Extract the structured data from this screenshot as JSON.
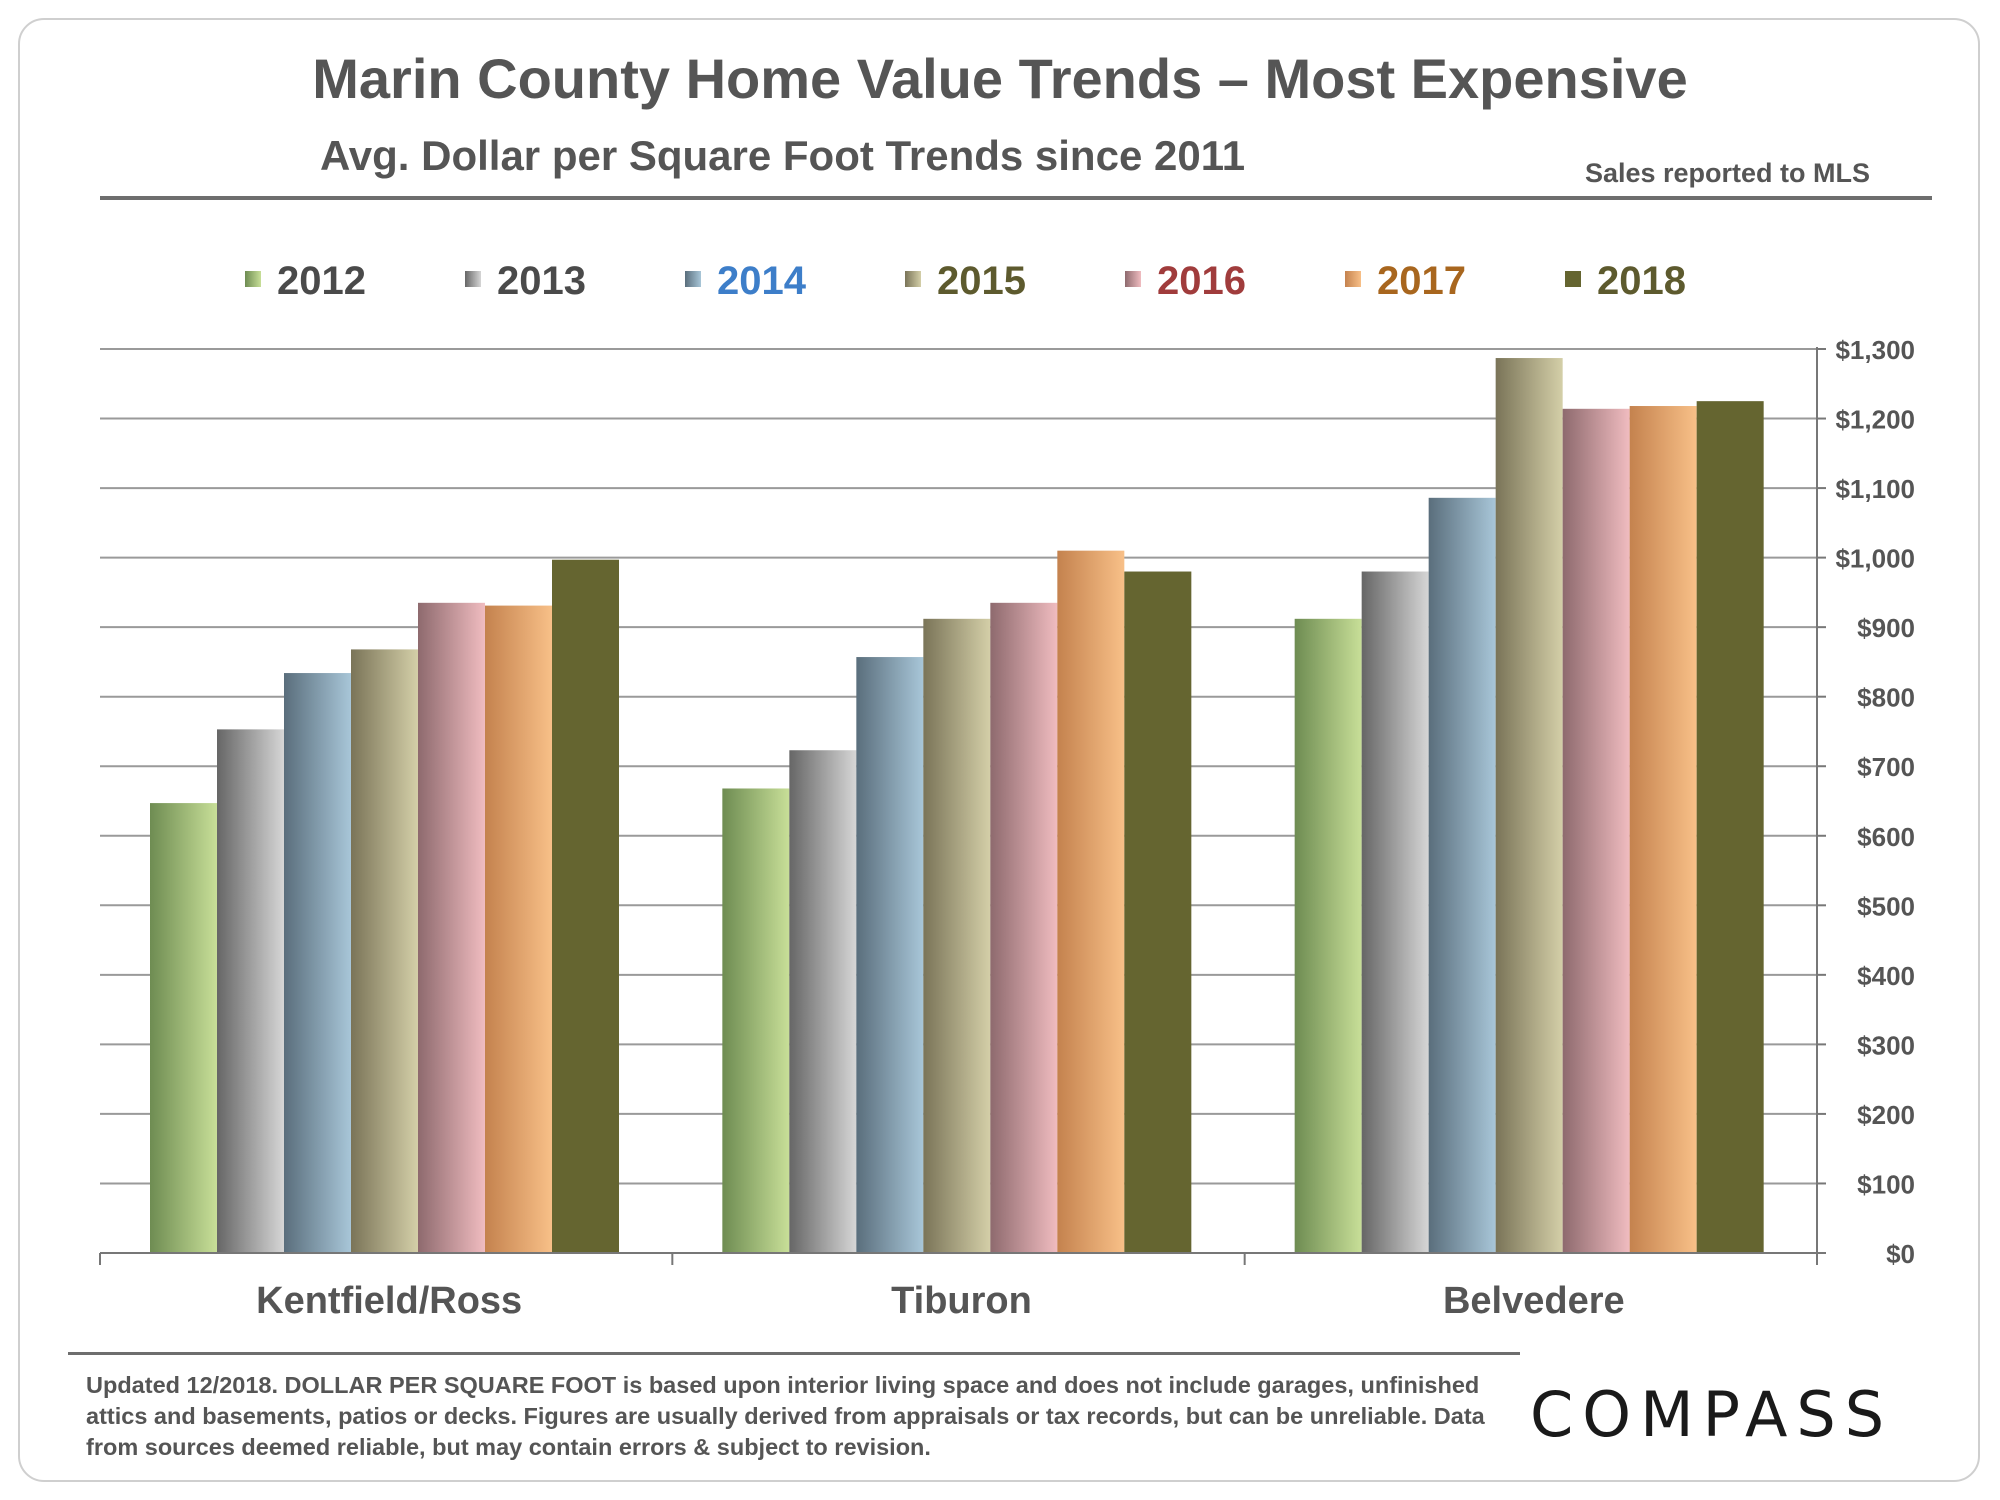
{
  "header": {
    "title": "Marin County Home Value Trends – Most Expensive",
    "subtitle": "Avg. Dollar per Square Foot Trends since 2011",
    "source_note": "Sales reported to MLS"
  },
  "footer": {
    "updated": "Updated 12/2018.",
    "note": "DOLLAR PER SQUARE FOOT is based upon interior living space and does not include garages, unfinished attics and basements, patios or decks. Figures are usually derived from appraisals or tax records, but can be unreliable. Data from sources deemed reliable, but may contain errors & subject to revision.",
    "logo_text": "COMPASS"
  },
  "chart_data": {
    "type": "bar",
    "title": "Marin County Home Value Trends – Most Expensive",
    "subtitle": "Avg. Dollar per Square Foot Trends since 2011",
    "xlabel": "",
    "ylabel": "",
    "ylim": [
      0,
      1300
    ],
    "yticks": [
      0,
      100,
      200,
      300,
      400,
      500,
      600,
      700,
      800,
      900,
      1000,
      1100,
      1200,
      1300
    ],
    "ytick_labels": [
      "$0",
      "$100",
      "$200",
      "$300",
      "$400",
      "$500",
      "$600",
      "$700",
      "$800",
      "$900",
      "$1,000",
      "$1,100",
      "$1,200",
      "$1,300"
    ],
    "y_axis_side": "right",
    "grid": true,
    "legend_position": "top",
    "categories": [
      "Kentfield/Ross",
      "Tiburon",
      "Belvedere"
    ],
    "series": [
      {
        "name": "2012",
        "values": [
          647,
          668,
          912
        ],
        "color_dark": "#6e8c52",
        "color_light": "#c8df98",
        "label_color": "#4a4a4a"
      },
      {
        "name": "2013",
        "values": [
          753,
          723,
          980
        ],
        "color_dark": "#666666",
        "color_light": "#d6d6d6",
        "label_color": "#4a4a4a"
      },
      {
        "name": "2014",
        "values": [
          834,
          857,
          1086
        ],
        "color_dark": "#5a6e7c",
        "color_light": "#a8c6d8",
        "label_color": "#3d7ec9"
      },
      {
        "name": "2015",
        "values": [
          868,
          912,
          1287
        ],
        "color_dark": "#7a7458",
        "color_light": "#d4cfa8",
        "label_color": "#5d5a2e"
      },
      {
        "name": "2016",
        "values": [
          935,
          935,
          1214
        ],
        "color_dark": "#8e6a6e",
        "color_light": "#f0bcc0",
        "label_color": "#a03c3c"
      },
      {
        "name": "2017",
        "values": [
          931,
          1010,
          1218
        ],
        "color_dark": "#c4824e",
        "color_light": "#f8c088",
        "label_color": "#a8661e"
      },
      {
        "name": "2018",
        "values": [
          997,
          980,
          1225
        ],
        "color_dark": "#656530",
        "color_light": "#656530",
        "label_color": "#5d5a2e"
      }
    ]
  }
}
